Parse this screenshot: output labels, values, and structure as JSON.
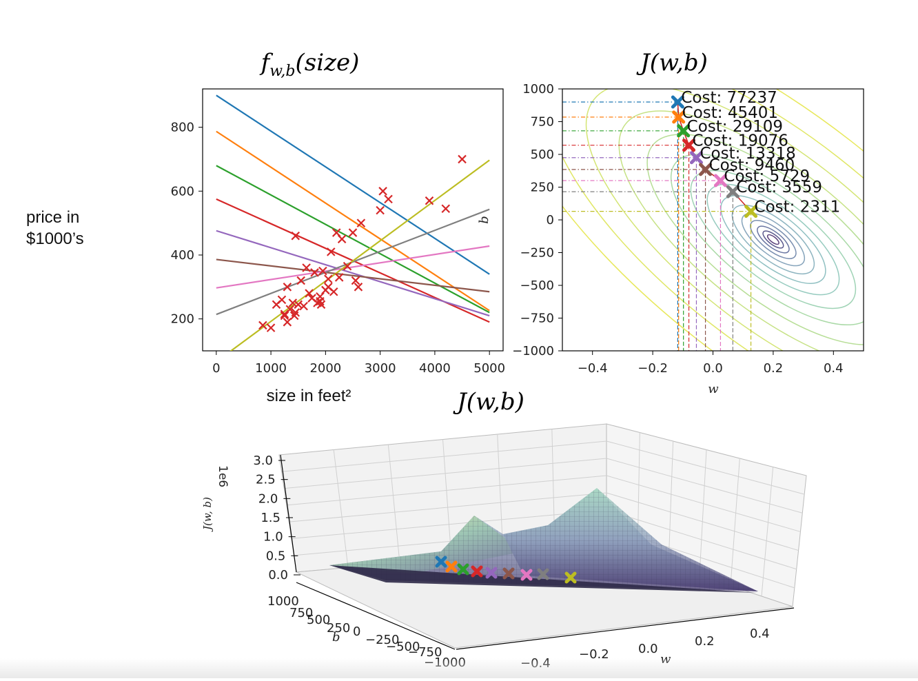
{
  "side_label": {
    "line1": "price in",
    "line2": "$1000’s"
  },
  "chart_data": [
    {
      "type": "line",
      "title": "f_{w,b}(size)",
      "xlabel": "size in feet²",
      "ylabel": "",
      "xlim": [
        -250,
        5250
      ],
      "ylim": [
        100,
        920
      ],
      "xticks": [
        0,
        1000,
        2000,
        3000,
        4000,
        5000
      ],
      "yticks": [
        200,
        400,
        600,
        800
      ],
      "grid": false,
      "lines": [
        {
          "color": "#1f77b4",
          "y0": 900,
          "y5000": 340
        },
        {
          "color": "#ff7f0e",
          "y0": 787,
          "y5000": 226
        },
        {
          "color": "#2ca02c",
          "y0": 680,
          "y5000": 220
        },
        {
          "color": "#d62728",
          "y0": 575,
          "y5000": 190
        },
        {
          "color": "#9467bd",
          "y0": 476,
          "y5000": 210
        },
        {
          "color": "#8c564b",
          "y0": 386,
          "y5000": 285
        },
        {
          "color": "#e377c2",
          "y0": 297,
          "y5000": 428
        },
        {
          "color": "#7f7f7f",
          "y0": 214,
          "y5000": 543
        },
        {
          "color": "#bcbd22",
          "y0": 66,
          "y5000": 697
        }
      ],
      "points": {
        "marker": "x",
        "color": "#d62728",
        "x": [
          852,
          1000,
          1100,
          1200,
          1250,
          1300,
          1350,
          1400,
          1430,
          1450,
          1500,
          1550,
          1600,
          1650,
          1700,
          1750,
          1800,
          1850,
          1900,
          1920,
          1950,
          2000,
          2050,
          2100,
          2150,
          2200,
          2250,
          2300,
          2400,
          2500,
          2550,
          2600,
          2650,
          3000,
          3050,
          3150,
          3900,
          4200,
          4500,
          1450,
          1300,
          1250,
          1900,
          2050
        ],
        "y": [
          180,
          172,
          245,
          260,
          210,
          300,
          230,
          250,
          210,
          460,
          245,
          320,
          240,
          360,
          280,
          265,
          345,
          250,
          270,
          245,
          350,
          290,
          325,
          410,
          285,
          470,
          330,
          450,
          365,
          470,
          320,
          300,
          500,
          540,
          600,
          575,
          570,
          545,
          700,
          220,
          190,
          215,
          255,
          300
        ]
      }
    },
    {
      "type": "contour",
      "title": "J(w,b)",
      "xlabel": "w",
      "ylabel": "b",
      "xlim": [
        -0.5,
        0.5
      ],
      "ylim": [
        -1000,
        1000
      ],
      "xticks": [
        -0.4,
        -0.2,
        0.0,
        0.2,
        0.4
      ],
      "yticks": [
        1000,
        750,
        500,
        250,
        0,
        -250,
        -500,
        -750,
        -1000
      ],
      "contour_center": [
        0.2,
        -150
      ],
      "path": [
        {
          "w": -0.117,
          "b": 900,
          "cost": "Cost: 77237",
          "color": "#1f77b4"
        },
        {
          "w": -0.114,
          "b": 785,
          "cost": "Cost: 45401",
          "color": "#ff7f0e"
        },
        {
          "w": -0.098,
          "b": 680,
          "cost": "Cost: 29109",
          "color": "#2ca02c"
        },
        {
          "w": -0.08,
          "b": 570,
          "cost": "Cost: 19076",
          "color": "#d62728"
        },
        {
          "w": -0.055,
          "b": 475,
          "cost": "Cost: 13318",
          "color": "#9467bd"
        },
        {
          "w": -0.025,
          "b": 385,
          "cost": "Cost: 9460",
          "color": "#8c564b"
        },
        {
          "w": 0.025,
          "b": 300,
          "cost": "Cost: 5729",
          "color": "#e377c2"
        },
        {
          "w": 0.066,
          "b": 215,
          "cost": "Cost: 3559",
          "color": "#7f7f7f"
        },
        {
          "w": 0.126,
          "b": 65,
          "cost": "Cost: 2311",
          "color": "#bcbd22"
        }
      ]
    },
    {
      "type": "surface",
      "title": "J(w,b)",
      "xlabel": "w",
      "ylabel": "b",
      "zlabel": "J(w, b)",
      "zscale": "1e6",
      "zticks": [
        "3.0",
        "2.5",
        "2.0",
        "1.5",
        "1.0",
        "0.5",
        "0.0"
      ],
      "xticks": [
        "-0.4",
        "-0.2",
        "0.0",
        "0.2",
        "0.4"
      ],
      "yticks": [
        "1000",
        "750",
        "500",
        "250",
        "0",
        "-250",
        "-500",
        "-750",
        "-1000"
      ]
    }
  ]
}
